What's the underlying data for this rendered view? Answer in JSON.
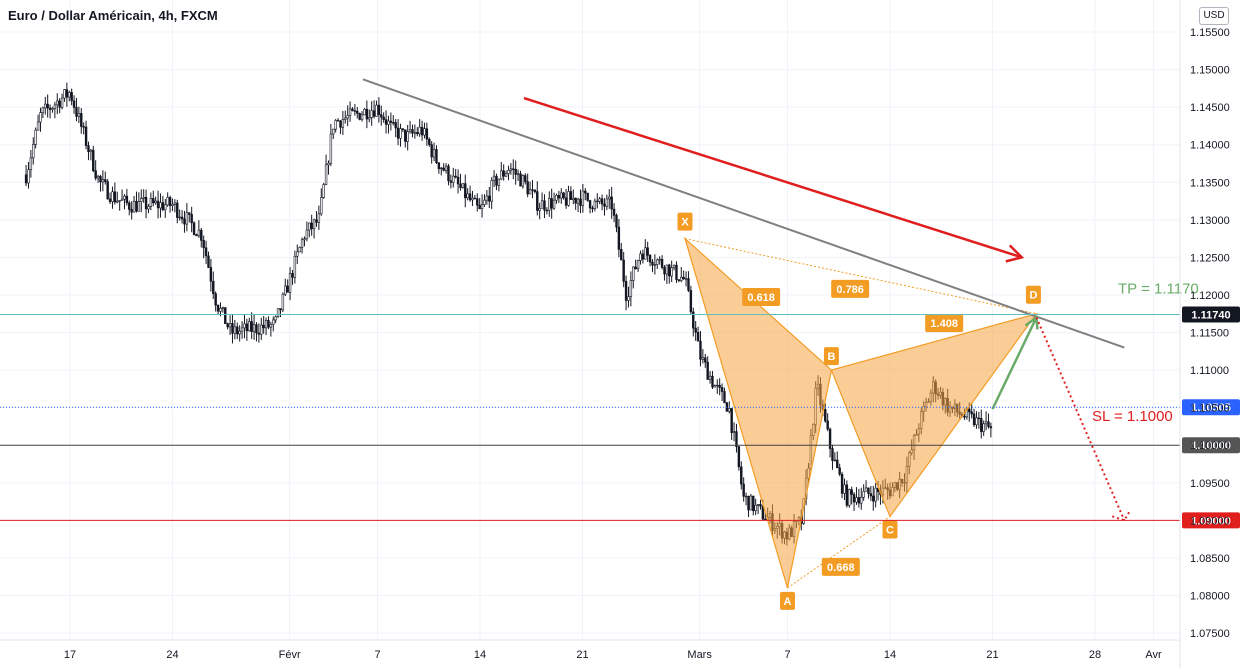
{
  "header": {
    "title": "Euro / Dollar Américain, 4h, FXCM",
    "currency_button": "USD"
  },
  "colors": {
    "candle": "#131722",
    "pattern_fill": "#f7a440",
    "pattern_stroke": "#f39c24",
    "trend_line": "#808080",
    "red_arrow": "#e01e1e",
    "green_arrow": "#6aab6a",
    "tp_line": "#5bc0be",
    "current_line": "#2962ff",
    "sl_line": "#444444",
    "target_line": "#e01e1e"
  },
  "chart_data": {
    "type": "candlestick",
    "symbol": "EUR/USD",
    "timeframe": "4h",
    "ylim": [
      1.0735,
      1.1575
    ],
    "y_ticks": [
      "1.15500",
      "1.15000",
      "1.14500",
      "1.14000",
      "1.13500",
      "1.13000",
      "1.12500",
      "1.12000",
      "1.11500",
      "1.11000",
      "1.10500",
      "1.10000",
      "1.09500",
      "1.09000",
      "1.08500",
      "1.08000",
      "1.07500"
    ],
    "x_ticks": [
      "17",
      "24",
      "Févr",
      "7",
      "14",
      "21",
      "Mars",
      "7",
      "14",
      "21",
      "28",
      "Avr"
    ],
    "x_tick_dates": [
      "2022-01-17",
      "2022-01-24",
      "2022-02-01",
      "2022-02-07",
      "2022-02-14",
      "2022-02-21",
      "2022-03-01",
      "2022-03-07",
      "2022-03-14",
      "2022-03-21",
      "2022-03-28",
      "2022-04-01"
    ],
    "close_path": [
      [
        "2022-01-14",
        1.136
      ],
      [
        "2022-01-15",
        1.144
      ],
      [
        "2022-01-17",
        1.147
      ],
      [
        "2022-01-18",
        1.141
      ],
      [
        "2022-01-19",
        1.135
      ],
      [
        "2022-01-20",
        1.133
      ],
      [
        "2022-01-21",
        1.132
      ],
      [
        "2022-01-24",
        1.132
      ],
      [
        "2022-01-25",
        1.13
      ],
      [
        "2022-01-26",
        1.128
      ],
      [
        "2022-01-27",
        1.119
      ],
      [
        "2022-01-28",
        1.115
      ],
      [
        "2022-01-31",
        1.116
      ],
      [
        "2022-02-01",
        1.122
      ],
      [
        "2022-02-02",
        1.128
      ],
      [
        "2022-02-03",
        1.13
      ],
      [
        "2022-02-04",
        1.143
      ],
      [
        "2022-02-07",
        1.145
      ],
      [
        "2022-02-08",
        1.142
      ],
      [
        "2022-02-09",
        1.141
      ],
      [
        "2022-02-10",
        1.142
      ],
      [
        "2022-02-11",
        1.138
      ],
      [
        "2022-02-14",
        1.131
      ],
      [
        "2022-02-15",
        1.135
      ],
      [
        "2022-02-16",
        1.137
      ],
      [
        "2022-02-17",
        1.135
      ],
      [
        "2022-02-18",
        1.132
      ],
      [
        "2022-02-21",
        1.133
      ],
      [
        "2022-02-22",
        1.132
      ],
      [
        "2022-02-23",
        1.132
      ],
      [
        "2022-02-24",
        1.12
      ],
      [
        "2022-02-25",
        1.126
      ],
      [
        "2022-02-28",
        1.122
      ],
      [
        "2022-03-01",
        1.112
      ],
      [
        "2022-03-02",
        1.108
      ],
      [
        "2022-03-03",
        1.105
      ],
      [
        "2022-03-04",
        1.093
      ],
      [
        "2022-03-07",
        1.088
      ],
      [
        "2022-03-08",
        1.09
      ],
      [
        "2022-03-09",
        1.108
      ],
      [
        "2022-03-10",
        1.099
      ],
      [
        "2022-03-11",
        1.093
      ],
      [
        "2022-03-14",
        1.094
      ],
      [
        "2022-03-15",
        1.096
      ],
      [
        "2022-03-16",
        1.103
      ],
      [
        "2022-03-17",
        1.108
      ],
      [
        "2022-03-18",
        1.105
      ],
      [
        "2022-03-21",
        1.102
      ]
    ],
    "lines": [
      {
        "label": "1.11740",
        "price": 1.1174,
        "note": "TP = 1.1170"
      },
      {
        "label": "1.10505",
        "price": 1.10505
      },
      {
        "label": "1.10000",
        "price": 1.1,
        "note": "SL = 1.1000"
      },
      {
        "label": "1.09000",
        "price": 1.09
      }
    ],
    "harmonic_pattern": {
      "points": [
        {
          "label": "X",
          "date": "2022-02-28",
          "price": 1.1275
        },
        {
          "label": "A",
          "date": "2022-03-07",
          "price": 1.081
        },
        {
          "label": "B",
          "date": "2022-03-10",
          "price": 1.11
        },
        {
          "label": "C",
          "date": "2022-03-14",
          "price": 1.0905
        },
        {
          "label": "D",
          "date": "2022-03-24",
          "price": 1.1175
        }
      ],
      "ratios": [
        "0.618",
        "0.786",
        "1.408",
        "0.668"
      ]
    },
    "annotations": [
      "TP = 1.1170",
      "SL = 1.1000"
    ]
  }
}
